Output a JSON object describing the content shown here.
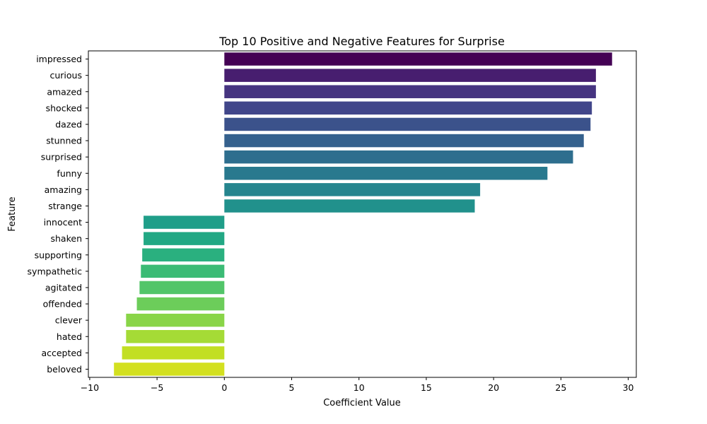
{
  "chart_data": {
    "type": "bar",
    "orientation": "horizontal",
    "title": "Top 10 Positive and Negative Features for Surprise",
    "xlabel": "Coefficient Value",
    "ylabel": "Feature",
    "xlim": [
      -10.1,
      30.6
    ],
    "xticks": [
      -10,
      -5,
      0,
      5,
      10,
      15,
      20,
      25,
      30
    ],
    "grid": false,
    "categories": [
      "impressed",
      "curious",
      "amazed",
      "shocked",
      "dazed",
      "stunned",
      "surprised",
      "funny",
      "amazing",
      "strange",
      "innocent",
      "shaken",
      "supporting",
      "sympathetic",
      "agitated",
      "offended",
      "clever",
      "hated",
      "accepted",
      "beloved"
    ],
    "values": [
      28.8,
      27.6,
      27.6,
      27.3,
      27.2,
      26.7,
      25.9,
      24.0,
      19.0,
      18.6,
      -6.0,
      -6.0,
      -6.1,
      -6.2,
      -6.3,
      -6.5,
      -7.3,
      -7.3,
      -7.6,
      -8.2
    ],
    "colors": [
      "#440154",
      "#471e6f",
      "#463480",
      "#41468a",
      "#3b528b",
      "#35618d",
      "#2e6e8e",
      "#29798e",
      "#25858e",
      "#21918c",
      "#1f9e89",
      "#22a884",
      "#2ab07f",
      "#3bbb75",
      "#52c569",
      "#6ccd5a",
      "#89d548",
      "#a5db36",
      "#c2df23",
      "#d3e020"
    ]
  }
}
